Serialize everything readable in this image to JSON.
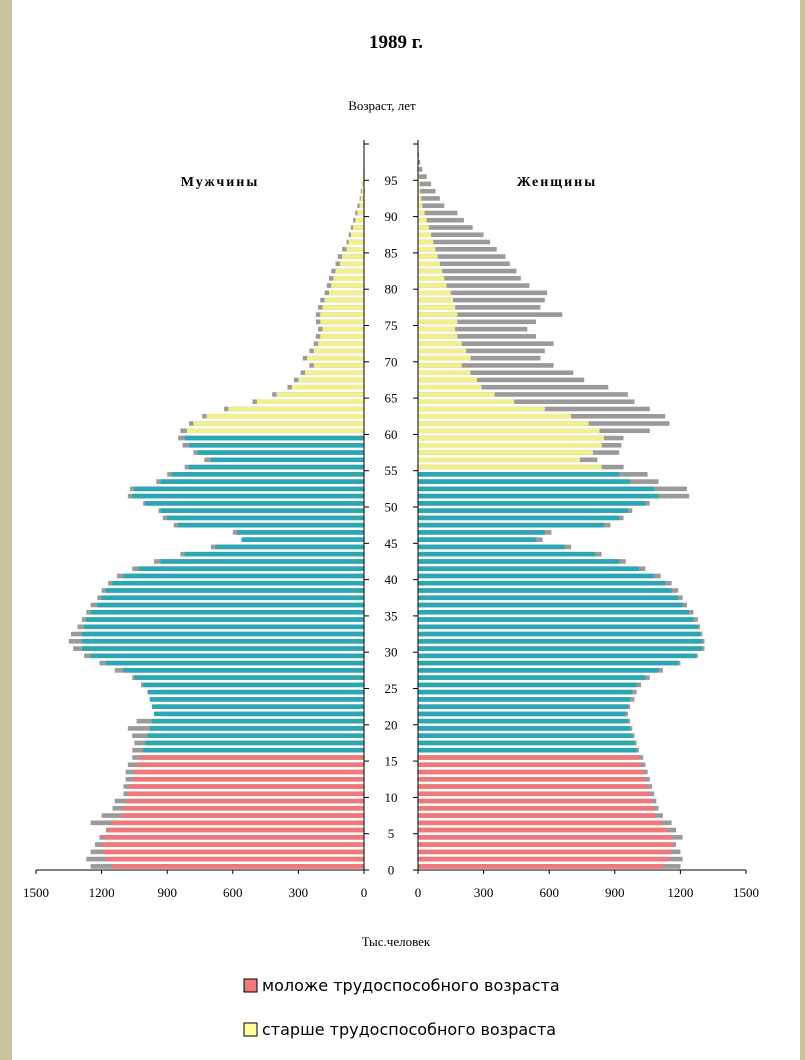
{
  "chart_data": {
    "type": "bar",
    "subtype": "population-pyramid",
    "title": "1989 г.",
    "y_axis_label": "Возраст, лет",
    "x_axis_label": "Тыс.человек",
    "left_group_label": "Мужчины",
    "right_group_label": "Женщины",
    "age_ticks": [
      "0",
      "5",
      "10",
      "15",
      "20",
      "25",
      "30",
      "35",
      "40",
      "45",
      "50",
      "55",
      "60",
      "65",
      "70",
      "75",
      "80",
      "85",
      "90",
      "95"
    ],
    "x_ticks_left": [
      "1500",
      "1200",
      "900",
      "600",
      "300",
      "0"
    ],
    "x_ticks_right": [
      "0",
      "300",
      "600",
      "900",
      "1200",
      "1500"
    ],
    "xlim": [
      0,
      1500
    ],
    "ylim": [
      0,
      100
    ],
    "legend": [
      {
        "label": "моложе трудоспособного возраста",
        "color": "#f0777a"
      },
      {
        "label": "старше трудоспособного возраста",
        "color": "#ffff99"
      }
    ],
    "colors": {
      "young": "#f0777a",
      "working": "#2ba7b4",
      "older": "#f2ef8c",
      "alt_1959": "#9a9a9a"
    },
    "men_1989": [
      1150,
      1180,
      1190,
      1200,
      1190,
      1170,
      1150,
      1110,
      1100,
      1090,
      1080,
      1070,
      1060,
      1050,
      1040,
      1030,
      1010,
      1000,
      990,
      980,
      970,
      960,
      970,
      980,
      990,
      1010,
      1050,
      1100,
      1180,
      1250,
      1290,
      1290,
      1290,
      1280,
      1270,
      1250,
      1220,
      1200,
      1180,
      1150,
      1100,
      1030,
      930,
      820,
      680,
      560,
      580,
      850,
      900,
      930,
      1000,
      1060,
      1050,
      930,
      880,
      800,
      700,
      760,
      800,
      820,
      810,
      780,
      720,
      620,
      490,
      400,
      330,
      300,
      270,
      230,
      260,
      230,
      210,
      200,
      190,
      200,
      200,
      190,
      180,
      160,
      150,
      140,
      130,
      110,
      100,
      80,
      70,
      60,
      50,
      40,
      30,
      20,
      15,
      10,
      8,
      5,
      3,
      2,
      1,
      0
    ],
    "men_1959": [
      1250,
      1270,
      1250,
      1230,
      1210,
      1180,
      1250,
      1200,
      1150,
      1140,
      1100,
      1100,
      1090,
      1090,
      1080,
      1060,
      1060,
      1050,
      1060,
      1080,
      1040,
      920,
      940,
      950,
      950,
      1020,
      1060,
      1140,
      1210,
      1280,
      1330,
      1350,
      1340,
      1310,
      1290,
      1270,
      1250,
      1220,
      1200,
      1170,
      1130,
      1060,
      960,
      840,
      700,
      560,
      600,
      870,
      920,
      940,
      1010,
      1080,
      1070,
      950,
      900,
      820,
      730,
      780,
      830,
      850,
      840,
      800,
      740,
      640,
      510,
      420,
      350,
      320,
      290,
      250,
      280,
      250,
      230,
      220,
      210,
      220,
      220,
      210,
      200,
      180,
      170,
      160,
      150,
      130,
      120,
      100,
      80,
      70,
      60,
      50,
      40,
      30,
      20,
      15,
      10,
      5,
      3,
      2,
      1,
      0
    ],
    "women_1989": [
      1120,
      1150,
      1160,
      1170,
      1160,
      1140,
      1120,
      1090,
      1080,
      1070,
      1060,
      1050,
      1040,
      1030,
      1020,
      1010,
      1000,
      990,
      980,
      970,
      960,
      950,
      960,
      970,
      980,
      1000,
      1040,
      1100,
      1190,
      1270,
      1300,
      1300,
      1290,
      1280,
      1260,
      1240,
      1210,
      1190,
      1160,
      1130,
      1080,
      1010,
      920,
      810,
      670,
      540,
      580,
      850,
      920,
      960,
      1040,
      1100,
      1080,
      970,
      920,
      840,
      740,
      800,
      840,
      850,
      830,
      780,
      700,
      580,
      440,
      350,
      290,
      270,
      240,
      200,
      240,
      220,
      200,
      180,
      170,
      180,
      180,
      170,
      160,
      150,
      130,
      120,
      110,
      100,
      90,
      80,
      70,
      60,
      50,
      40,
      30,
      20,
      15,
      10,
      8,
      5,
      3,
      2,
      1,
      0
    ],
    "women_1959": [
      1200,
      1210,
      1200,
      1180,
      1210,
      1180,
      1160,
      1120,
      1100,
      1090,
      1080,
      1070,
      1060,
      1050,
      1040,
      1030,
      1010,
      1000,
      990,
      980,
      970,
      960,
      970,
      990,
      1000,
      1020,
      1060,
      1120,
      1200,
      1280,
      1310,
      1310,
      1300,
      1290,
      1280,
      1260,
      1230,
      1210,
      1190,
      1160,
      1110,
      1040,
      950,
      840,
      700,
      570,
      610,
      880,
      940,
      980,
      1060,
      1240,
      1230,
      1100,
      1050,
      940,
      820,
      920,
      930,
      940,
      1060,
      1150,
      1130,
      1060,
      990,
      960,
      870,
      760,
      710,
      620,
      560,
      580,
      620,
      540,
      500,
      540,
      660,
      560,
      580,
      590,
      510,
      470,
      450,
      420,
      400,
      360,
      330,
      300,
      250,
      210,
      180,
      120,
      100,
      80,
      60,
      40,
      20,
      10,
      5,
      0
    ]
  },
  "legend": {
    "young": "моложе трудоспособного возраста",
    "older": "старше трудоспособного возраста"
  }
}
